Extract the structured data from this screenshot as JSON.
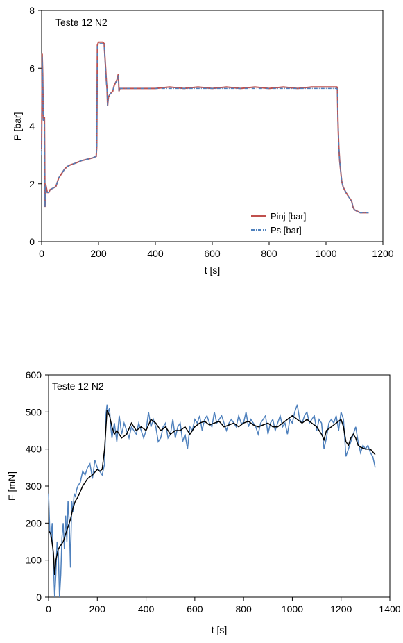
{
  "charts": [
    {
      "title": "Teste 12 N2",
      "xlabel": "t [s]",
      "ylabel": "P [bar]",
      "xticks": [
        "0",
        "200",
        "400",
        "600",
        "800",
        "1000",
        "1200"
      ],
      "yticks": [
        "0",
        "2",
        "4",
        "6",
        "8"
      ],
      "legend": [
        "Pinj [bar]",
        "Ps   [bar]"
      ]
    },
    {
      "title": "Teste 12 N2",
      "xlabel": "t [s]",
      "ylabel": "F [mN]",
      "xticks": [
        "0",
        "200",
        "400",
        "600",
        "800",
        "1000",
        "1200",
        "1400"
      ],
      "yticks": [
        "0",
        "100",
        "200",
        "300",
        "400",
        "500",
        "600"
      ]
    }
  ],
  "chart_data": [
    {
      "type": "line",
      "title": "Teste 12 N2",
      "xlabel": "t [s]",
      "ylabel": "P [bar]",
      "xlim": [
        0,
        1200
      ],
      "ylim": [
        0,
        8
      ],
      "grid": false,
      "legend_position": "bottom-right",
      "colors": {
        "Pinj [bar]": "#c0504d",
        "Ps   [bar]": "#4f81bd"
      },
      "series": [
        {
          "name": "Pinj [bar]",
          "x": [
            0,
            2,
            4,
            6,
            8,
            10,
            12,
            14,
            16,
            18,
            20,
            25,
            30,
            40,
            50,
            60,
            70,
            80,
            90,
            100,
            120,
            140,
            160,
            180,
            192,
            194,
            196,
            200,
            205,
            210,
            215,
            220,
            222,
            225,
            228,
            230,
            232,
            235,
            240,
            250,
            255,
            260,
            265,
            270,
            272,
            275,
            280,
            300,
            350,
            400,
            450,
            500,
            550,
            600,
            650,
            700,
            750,
            800,
            850,
            900,
            950,
            1000,
            1020,
            1038,
            1040,
            1042,
            1045,
            1048,
            1050,
            1055,
            1060,
            1065,
            1070,
            1080,
            1090,
            1095,
            1100,
            1110,
            1120,
            1130,
            1140,
            1150
          ],
          "y": [
            3.2,
            6.5,
            5.8,
            4.2,
            4.3,
            4.3,
            1.2,
            2.0,
            1.9,
            1.8,
            1.7,
            1.7,
            1.8,
            1.85,
            1.9,
            2.2,
            2.35,
            2.5,
            2.6,
            2.65,
            2.72,
            2.8,
            2.85,
            2.9,
            2.95,
            3.3,
            6.8,
            6.9,
            6.9,
            6.9,
            6.9,
            6.85,
            6.5,
            6.0,
            5.5,
            5.3,
            4.7,
            5.0,
            5.1,
            5.2,
            5.4,
            5.5,
            5.6,
            5.8,
            5.2,
            5.3,
            5.3,
            5.3,
            5.3,
            5.3,
            5.35,
            5.3,
            5.35,
            5.3,
            5.35,
            5.3,
            5.35,
            5.3,
            5.35,
            5.3,
            5.35,
            5.35,
            5.35,
            5.35,
            5.3,
            4.2,
            3.3,
            2.8,
            2.6,
            2.1,
            1.9,
            1.8,
            1.7,
            1.55,
            1.4,
            1.2,
            1.1,
            1.05,
            1.0,
            1.0,
            1.0,
            1.0
          ]
        },
        {
          "name": "Ps   [bar]",
          "x": [
            0,
            2,
            4,
            6,
            8,
            10,
            12,
            14,
            16,
            18,
            20,
            25,
            30,
            40,
            50,
            60,
            70,
            80,
            90,
            100,
            120,
            140,
            160,
            180,
            192,
            194,
            196,
            200,
            205,
            210,
            215,
            220,
            222,
            225,
            228,
            230,
            232,
            235,
            240,
            250,
            255,
            260,
            265,
            270,
            272,
            275,
            280,
            300,
            350,
            400,
            450,
            500,
            550,
            600,
            650,
            700,
            750,
            800,
            850,
            900,
            950,
            1000,
            1020,
            1038,
            1040,
            1042,
            1045,
            1048,
            1050,
            1055,
            1060,
            1065,
            1070,
            1080,
            1090,
            1095,
            1100,
            1110,
            1120,
            1130,
            1140,
            1150
          ],
          "y": [
            3.0,
            6.4,
            5.7,
            4.2,
            4.2,
            4.2,
            1.2,
            1.95,
            1.85,
            1.75,
            1.7,
            1.7,
            1.8,
            1.85,
            1.9,
            2.2,
            2.35,
            2.5,
            2.6,
            2.65,
            2.72,
            2.8,
            2.85,
            2.9,
            2.95,
            3.3,
            6.75,
            6.85,
            6.85,
            6.85,
            6.85,
            6.8,
            6.45,
            5.9,
            5.45,
            5.25,
            4.7,
            5.0,
            5.1,
            5.2,
            5.4,
            5.5,
            5.55,
            5.75,
            5.2,
            5.3,
            5.3,
            5.3,
            5.3,
            5.3,
            5.3,
            5.3,
            5.3,
            5.3,
            5.3,
            5.3,
            5.3,
            5.3,
            5.3,
            5.3,
            5.3,
            5.3,
            5.3,
            5.3,
            5.25,
            4.2,
            3.3,
            2.8,
            2.6,
            2.1,
            1.9,
            1.8,
            1.7,
            1.55,
            1.4,
            1.2,
            1.1,
            1.05,
            1.0,
            1.0,
            1.0,
            1.0
          ]
        }
      ]
    },
    {
      "type": "line",
      "title": "Teste 12 N2",
      "xlabel": "t [s]",
      "ylabel": "F [mN]",
      "xlim": [
        0,
        1400
      ],
      "ylim": [
        0,
        600
      ],
      "grid": false,
      "colors": {
        "raw": "#4f81bd",
        "smoothed": "#000000"
      },
      "series": [
        {
          "x": [
            0,
            5,
            10,
            15,
            20,
            25,
            30,
            35,
            40,
            45,
            50,
            55,
            60,
            65,
            70,
            75,
            80,
            85,
            90,
            95,
            100,
            105,
            110,
            115,
            120,
            130,
            140,
            150,
            160,
            170,
            180,
            190,
            200,
            210,
            220,
            230,
            235,
            240,
            245,
            250,
            255,
            260,
            270,
            280,
            290,
            300,
            310,
            320,
            330,
            340,
            350,
            360,
            370,
            380,
            390,
            400,
            410,
            420,
            430,
            440,
            450,
            460,
            470,
            480,
            490,
            500,
            510,
            520,
            530,
            540,
            550,
            560,
            570,
            580,
            590,
            600,
            610,
            620,
            630,
            640,
            650,
            660,
            670,
            680,
            690,
            700,
            710,
            720,
            730,
            740,
            750,
            760,
            770,
            780,
            790,
            800,
            810,
            820,
            830,
            840,
            850,
            860,
            870,
            880,
            890,
            900,
            910,
            920,
            930,
            940,
            950,
            960,
            970,
            980,
            990,
            1000,
            1010,
            1020,
            1030,
            1040,
            1050,
            1060,
            1070,
            1080,
            1090,
            1100,
            1110,
            1120,
            1130,
            1140,
            1150,
            1160,
            1170,
            1180,
            1190,
            1200,
            1210,
            1220,
            1230,
            1240,
            1250,
            1260,
            1270,
            1280,
            1290,
            1300,
            1310,
            1320,
            1330,
            1340
          ],
          "y": [
            280,
            180,
            160,
            200,
            90,
            0,
            60,
            150,
            120,
            0,
            60,
            160,
            200,
            130,
            220,
            150,
            260,
            200,
            80,
            260,
            230,
            280,
            270,
            290,
            300,
            310,
            340,
            330,
            350,
            360,
            320,
            370,
            350,
            340,
            330,
            360,
            490,
            520,
            500,
            510,
            460,
            430,
            470,
            420,
            490,
            440,
            470,
            450,
            430,
            460,
            450,
            440,
            470,
            450,
            430,
            450,
            500,
            460,
            480,
            460,
            420,
            430,
            460,
            470,
            430,
            440,
            480,
            430,
            460,
            470,
            420,
            440,
            400,
            460,
            450,
            480,
            470,
            490,
            450,
            480,
            490,
            470,
            460,
            500,
            470,
            480,
            490,
            470,
            450,
            470,
            480,
            470,
            460,
            490,
            470,
            470,
            500,
            460,
            480,
            470,
            460,
            440,
            470,
            480,
            490,
            440,
            470,
            480,
            450,
            470,
            490,
            460,
            470,
            440,
            480,
            470,
            500,
            520,
            480,
            470,
            490,
            500,
            470,
            480,
            490,
            450,
            480,
            470,
            400,
            430,
            470,
            480,
            470,
            490,
            450,
            500,
            480,
            380,
            400,
            420,
            440,
            460,
            420,
            390,
            410,
            400,
            410,
            390,
            380,
            350
          ]
        },
        {
          "x": [
            0,
            10,
            20,
            25,
            30,
            40,
            50,
            60,
            70,
            80,
            90,
            100,
            110,
            120,
            140,
            160,
            180,
            200,
            210,
            220,
            230,
            240,
            250,
            260,
            270,
            280,
            300,
            320,
            340,
            360,
            380,
            400,
            420,
            440,
            460,
            480,
            500,
            520,
            540,
            560,
            580,
            600,
            620,
            640,
            660,
            680,
            700,
            720,
            740,
            760,
            780,
            800,
            820,
            840,
            860,
            880,
            900,
            920,
            940,
            960,
            980,
            1000,
            1020,
            1040,
            1060,
            1080,
            1100,
            1120,
            1130,
            1140,
            1160,
            1180,
            1200,
            1210,
            1220,
            1230,
            1240,
            1250,
            1260,
            1270,
            1280,
            1300,
            1320,
            1340
          ],
          "y": [
            180,
            170,
            120,
            60,
            100,
            130,
            140,
            150,
            170,
            190,
            210,
            240,
            260,
            270,
            300,
            320,
            330,
            345,
            340,
            345,
            400,
            505,
            490,
            460,
            440,
            450,
            430,
            440,
            470,
            450,
            460,
            450,
            480,
            470,
            450,
            460,
            440,
            450,
            450,
            460,
            440,
            460,
            470,
            475,
            465,
            470,
            475,
            460,
            465,
            470,
            460,
            470,
            475,
            465,
            460,
            465,
            470,
            460,
            460,
            470,
            480,
            490,
            480,
            470,
            480,
            470,
            460,
            440,
            425,
            450,
            460,
            470,
            480,
            460,
            420,
            410,
            430,
            440,
            430,
            410,
            405,
            400,
            400,
            385
          ]
        }
      ]
    }
  ]
}
